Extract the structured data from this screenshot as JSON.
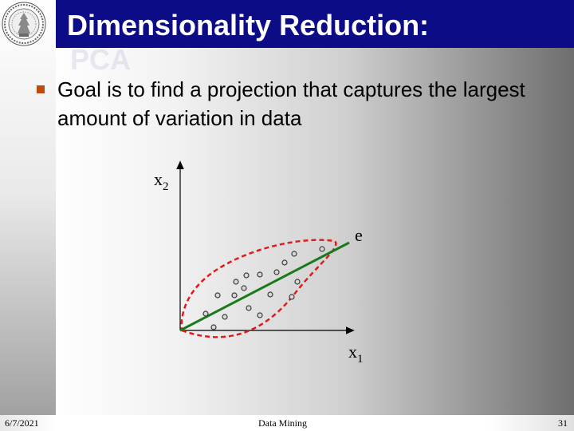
{
  "slide": {
    "title": "Dimensionality Reduction:",
    "title_overflow": "PCA",
    "bullet_text": "Goal is to find a projection that captures the largest  amount of variation in data",
    "colors": {
      "title_bar": "#0c0c87",
      "bullet": "#c04a0e",
      "projection_line": "#1a7a1a",
      "ellipse": "#e11b1b"
    }
  },
  "diagram": {
    "x_axis_label": "x",
    "x_axis_subscript": "1",
    "y_axis_label": "x",
    "y_axis_subscript": "2",
    "vector_label": "e"
  },
  "footer": {
    "date": "6/7/2021",
    "title": "Data Mining",
    "page": "31"
  }
}
